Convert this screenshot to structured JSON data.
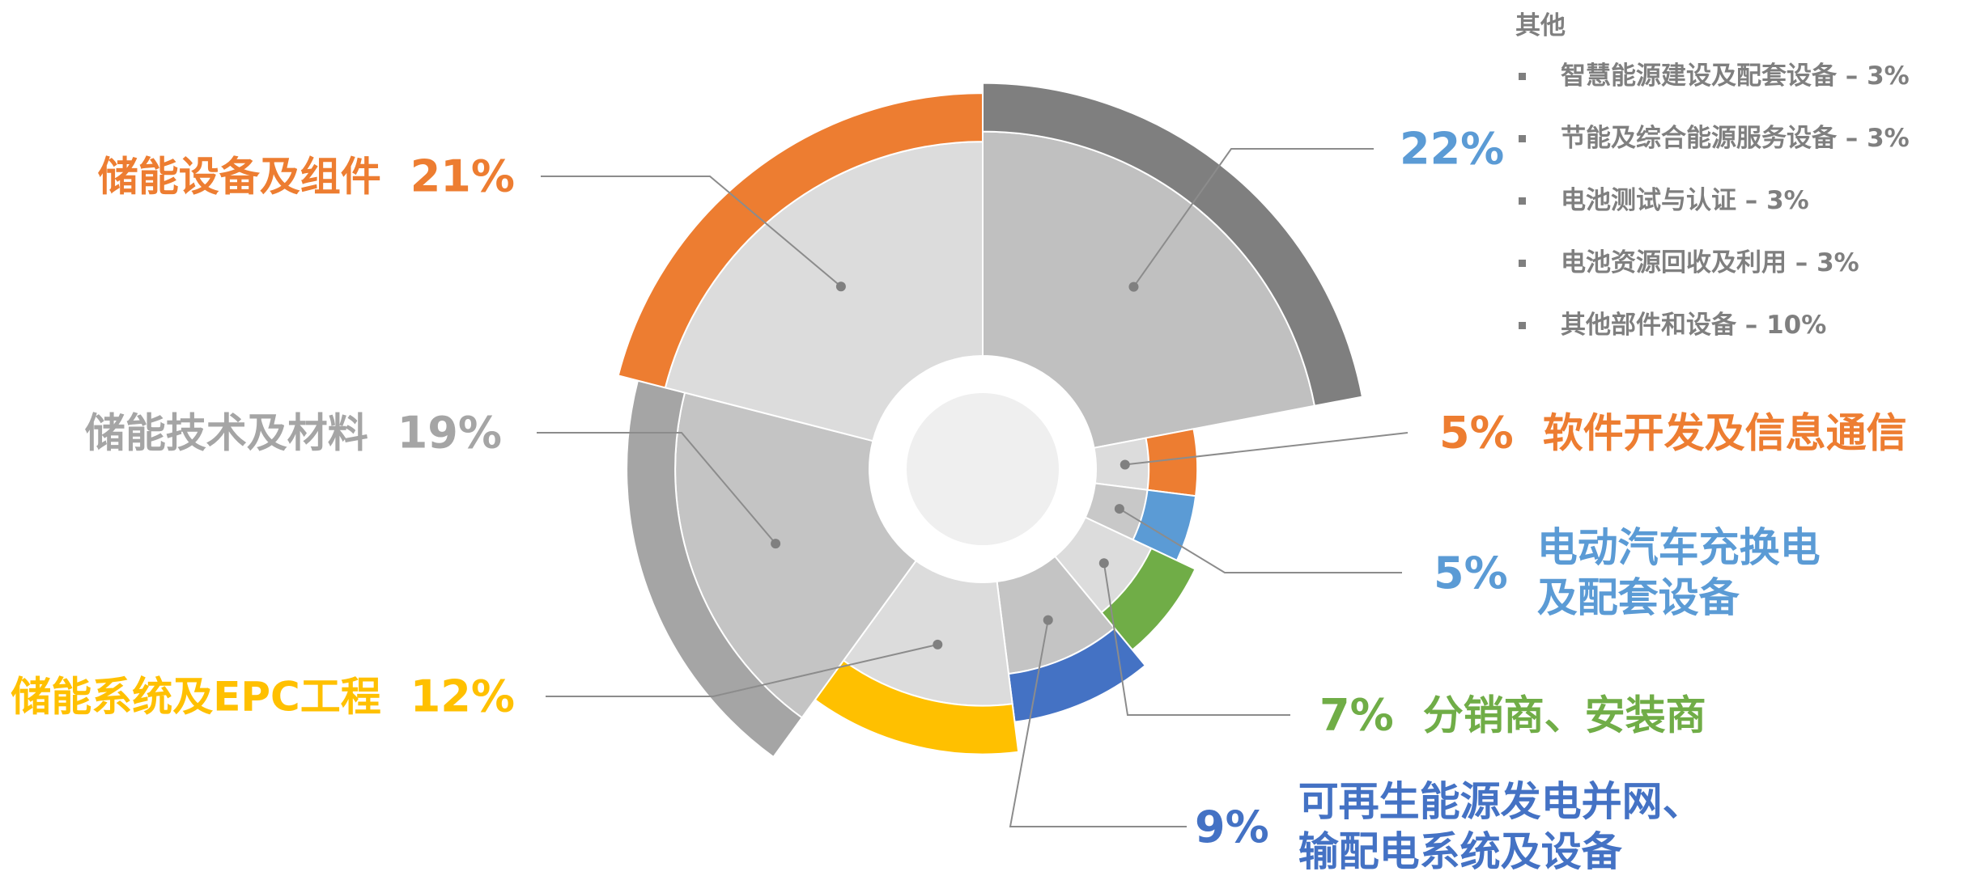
{
  "chart_data": {
    "type": "rose",
    "categories": [
      "其他",
      "软件开发及信息通信",
      "电动汽车充换电\n及配套设备",
      "分销商、安装商",
      "可再生能源发电并网、\n输配电系统及设备",
      "储能系统及EPC工程",
      "储能技术及材料",
      "储能设备及组件"
    ],
    "values": [
      22,
      5,
      5,
      7,
      9,
      12,
      19,
      21
    ],
    "value_labels": [
      "22%",
      "5%",
      "5%",
      "7%",
      "9%",
      "12%",
      "19%",
      "21%"
    ],
    "colors": [
      "#7f7f7f",
      "#ed7d31",
      "#5b9bd5",
      "#70ad47",
      "#4472c4",
      "#ffc000",
      "#a5a5a5",
      "#ed7d31"
    ],
    "other_breakdown": [
      "智慧能源建设及配套设备 – 3%",
      "节能及综合能源服务设备 – 3%",
      "电池测试与认证 – 3%",
      "电池资源回收及利用 – 3%",
      "其他部件和设备 – 10%"
    ]
  }
}
